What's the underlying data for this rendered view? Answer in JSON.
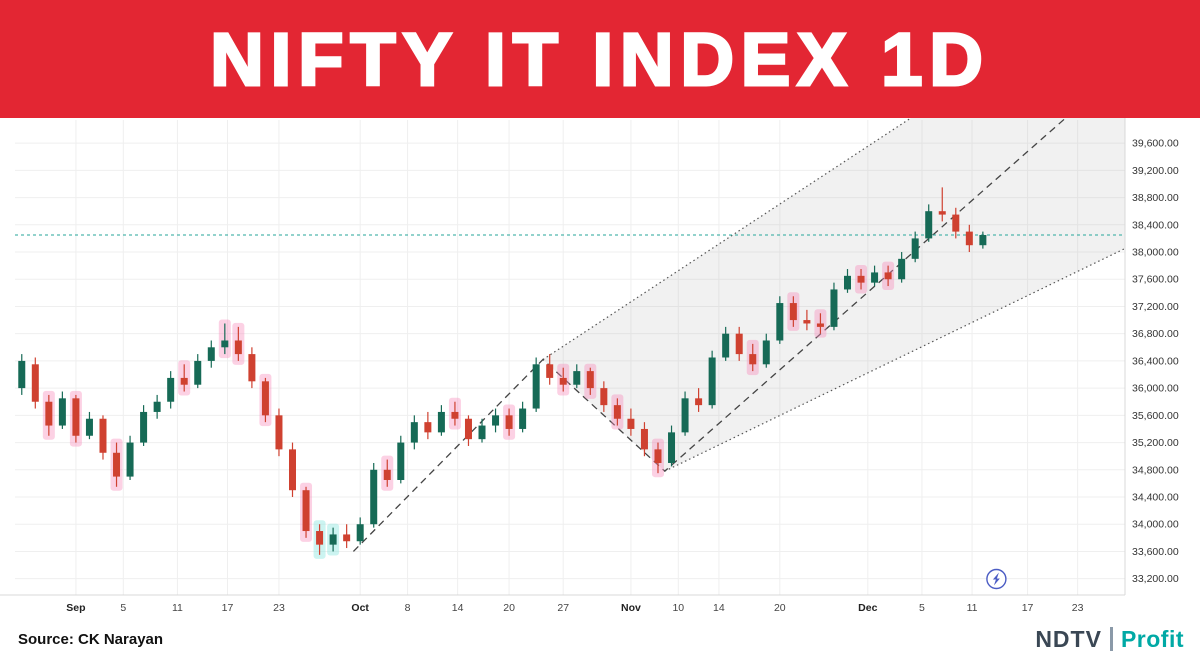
{
  "banner": {
    "title": "NIFTY IT INDEX 1D",
    "bg": "#e32633"
  },
  "footer": {
    "source": "Source: CK Narayan",
    "logo": {
      "ndtv": "NDTV",
      "ndtv_color": "#3a4754",
      "profit": "Profit",
      "profit_color": "#00a9a5"
    }
  },
  "chart_data": {
    "type": "candlestick",
    "title": "NIFTY IT INDEX 1D",
    "x_slots": 82,
    "y_range": [
      32960,
      39940
    ],
    "y_ticks": [
      39600,
      39200,
      38800,
      38400,
      38000,
      37600,
      37200,
      36800,
      36400,
      36000,
      35600,
      35200,
      34800,
      34400,
      34000,
      33600,
      33200
    ],
    "x_ticks": [
      [
        "Sep",
        4,
        1
      ],
      [
        "5",
        7.5,
        0
      ],
      [
        "11",
        11.5,
        0
      ],
      [
        "17",
        15.2,
        0
      ],
      [
        "23",
        19,
        0
      ],
      [
        "Oct",
        25,
        1
      ],
      [
        "8",
        28.5,
        0
      ],
      [
        "14",
        32.2,
        0
      ],
      [
        "20",
        36,
        0
      ],
      [
        "27",
        40,
        0
      ],
      [
        "Nov",
        45,
        1
      ],
      [
        "10",
        48.5,
        0
      ],
      [
        "14",
        51.5,
        0
      ],
      [
        "20",
        56,
        0
      ],
      [
        "Dec",
        62.5,
        1
      ],
      [
        "5",
        66.5,
        0
      ],
      [
        "11",
        70.2,
        0
      ],
      [
        "17",
        74.3,
        0
      ],
      [
        "23",
        78,
        0
      ]
    ],
    "hline": {
      "value": 38250
    },
    "zigzag": [
      [
        24.5,
        33600
      ],
      [
        38.5,
        36420
      ],
      [
        47.5,
        34780
      ],
      [
        79,
        40300
      ]
    ],
    "channel": {
      "upper": [
        [
          38.5,
          36420
        ],
        [
          82,
          42100
        ]
      ],
      "lower": [
        [
          47.5,
          34780
        ],
        [
          82,
          38100
        ]
      ]
    },
    "colors": {
      "up": "#166a56",
      "down": "#cf4130",
      "hline": "#26a69a",
      "line": "#555555",
      "zigzag": "#444444",
      "channel_fill": "rgba(170,170,170,0.16)",
      "highlight_pink": "rgba(247,141,187,0.40)",
      "highlight_cyan": "rgba(142,230,225,0.45)",
      "axis_text": "#333333",
      "grid": "#efefef",
      "bolt": "#4b5cc4"
    },
    "candles": [
      [
        36000,
        36500,
        35900,
        36400
      ],
      [
        36350,
        36450,
        35700,
        35800
      ],
      [
        35800,
        35900,
        35300,
        35450,
        1
      ],
      [
        35450,
        35950,
        35400,
        35850
      ],
      [
        35850,
        35900,
        35200,
        35300,
        1
      ],
      [
        35300,
        35650,
        35250,
        35550
      ],
      [
        35550,
        35600,
        34950,
        35050
      ],
      [
        35050,
        35200,
        34550,
        34700,
        1
      ],
      [
        34700,
        35300,
        34650,
        35200
      ],
      [
        35200,
        35750,
        35150,
        35650
      ],
      [
        35650,
        35900,
        35550,
        35800
      ],
      [
        35800,
        36250,
        35700,
        36150
      ],
      [
        36150,
        36350,
        35950,
        36050,
        1
      ],
      [
        36050,
        36500,
        36000,
        36400
      ],
      [
        36400,
        36700,
        36300,
        36600
      ],
      [
        36600,
        36950,
        36500,
        36700,
        1
      ],
      [
        36700,
        36900,
        36400,
        36500,
        1
      ],
      [
        36500,
        36600,
        36000,
        36100
      ],
      [
        36100,
        36150,
        35500,
        35600,
        1
      ],
      [
        35600,
        35700,
        35000,
        35100
      ],
      [
        35100,
        35200,
        34400,
        34500
      ],
      [
        34500,
        34550,
        33800,
        33900,
        1
      ],
      [
        33900,
        34000,
        33550,
        33700,
        2
      ],
      [
        33700,
        33950,
        33600,
        33850,
        2
      ],
      [
        33850,
        34000,
        33650,
        33750
      ],
      [
        33750,
        34100,
        33700,
        34000
      ],
      [
        34000,
        34900,
        33950,
        34800
      ],
      [
        34800,
        34950,
        34550,
        34650,
        1
      ],
      [
        34650,
        35300,
        34600,
        35200
      ],
      [
        35200,
        35600,
        35100,
        35500
      ],
      [
        35500,
        35650,
        35250,
        35350
      ],
      [
        35350,
        35750,
        35300,
        35650
      ],
      [
        35650,
        35800,
        35450,
        35550,
        1
      ],
      [
        35550,
        35600,
        35150,
        35250
      ],
      [
        35250,
        35550,
        35200,
        35450
      ],
      [
        35450,
        35700,
        35350,
        35600
      ],
      [
        35600,
        35700,
        35300,
        35400,
        1
      ],
      [
        35400,
        35800,
        35350,
        35700
      ],
      [
        35700,
        36450,
        35650,
        36350
      ],
      [
        36350,
        36500,
        36050,
        36150
      ],
      [
        36150,
        36300,
        35950,
        36050,
        1
      ],
      [
        36050,
        36350,
        36000,
        36250
      ],
      [
        36250,
        36300,
        35900,
        36000,
        1
      ],
      [
        36000,
        36100,
        35650,
        35750
      ],
      [
        35750,
        35850,
        35450,
        35550,
        1
      ],
      [
        35550,
        35700,
        35300,
        35400
      ],
      [
        35400,
        35500,
        35000,
        35100
      ],
      [
        35100,
        35200,
        34750,
        34900,
        1
      ],
      [
        34900,
        35450,
        34850,
        35350
      ],
      [
        35350,
        35950,
        35300,
        35850
      ],
      [
        35850,
        36000,
        35650,
        35750
      ],
      [
        35750,
        36550,
        35700,
        36450
      ],
      [
        36450,
        36900,
        36400,
        36800
      ],
      [
        36800,
        36900,
        36400,
        36500
      ],
      [
        36500,
        36650,
        36250,
        36350,
        1
      ],
      [
        36350,
        36800,
        36300,
        36700
      ],
      [
        36700,
        37350,
        36650,
        37250
      ],
      [
        37250,
        37350,
        36900,
        37000,
        1
      ],
      [
        37000,
        37150,
        36850,
        36950
      ],
      [
        36950,
        37100,
        36800,
        36900,
        1
      ],
      [
        36900,
        37550,
        36850,
        37450
      ],
      [
        37450,
        37750,
        37400,
        37650
      ],
      [
        37650,
        37750,
        37450,
        37550,
        1
      ],
      [
        37550,
        37800,
        37500,
        37700
      ],
      [
        37700,
        37800,
        37500,
        37600,
        1
      ],
      [
        37600,
        38000,
        37550,
        37900
      ],
      [
        37900,
        38300,
        37850,
        38200
      ],
      [
        38200,
        38700,
        38150,
        38600
      ],
      [
        38600,
        38950,
        38450,
        38550
      ],
      [
        38550,
        38650,
        38200,
        38300
      ],
      [
        38300,
        38400,
        38000,
        38100
      ],
      [
        38100,
        38300,
        38050,
        38250
      ]
    ]
  }
}
